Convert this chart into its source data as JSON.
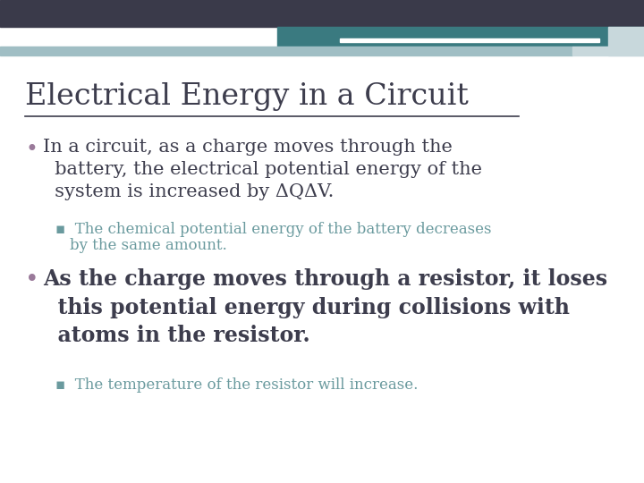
{
  "title": "Electrical Energy in a Circuit",
  "title_color": "#3d3d4d",
  "title_underline_color": "#3d3d4d",
  "background_color": "#ffffff",
  "header_dark_color": "#3a3a4a",
  "header_teal_color": "#3a7a80",
  "header_light_color": "#a0bec4",
  "header_lighter_color": "#c8d8dc",
  "bullet_color": "#3d3d4d",
  "bullet_dot_color": "#9a7a9a",
  "sub_bullet_color": "#6a9a9e",
  "bullet1_text": "In a circuit, as a charge moves through the\n  battery, the electrical potential energy of the\n  system is increased by ΔQΔV.",
  "sub_bullet1_line1": "The chemical potential energy of the battery decreases",
  "sub_bullet1_line2": "by the same amount.",
  "bullet2_text": "As the charge moves through a resistor, it loses\n  this potential energy during collisions with\n  atoms in the resistor.",
  "sub_bullet2": "The temperature of the resistor will increase.",
  "bullet1_fontsize": 15,
  "bullet2_fontsize": 17,
  "sub_bullet_fontsize": 12,
  "title_fontsize": 24
}
